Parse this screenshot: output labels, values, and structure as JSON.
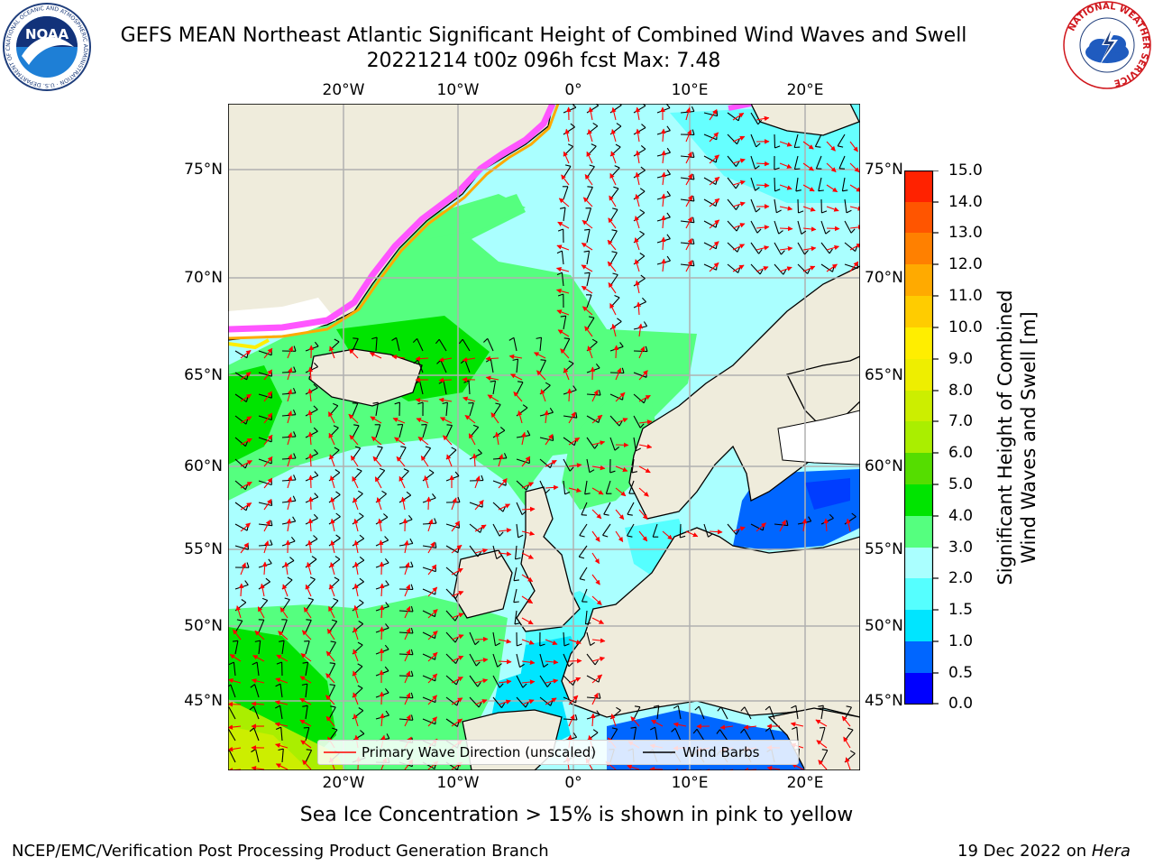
{
  "title": {
    "line1": "GEFS MEAN Northeast Atlantic Significant Height of Combined Wind Waves and Swell",
    "line2": "20221214 t00z 096h fcst   Max: 7.48"
  },
  "map": {
    "lon_ticks": [
      "20°W",
      "10°W",
      "0°",
      "10°E",
      "20°E"
    ],
    "lat_ticks_left": [
      "75°N",
      "70°N",
      "65°N",
      "60°N",
      "55°N",
      "50°N",
      "45°N"
    ],
    "lat_ticks_right": [
      "75°N",
      "70°N",
      "65°N",
      "60°N",
      "55°N",
      "50°N",
      "45°N"
    ],
    "colors": {
      "land": "#efecdc",
      "coast": "#000000",
      "grid": "#b0b0b0",
      "wave_arrow": "#ff0000",
      "wind_barb": "#000000"
    }
  },
  "legend": {
    "wave_direction": "Primary Wave Direction (unscaled)",
    "wind_barbs": "Wind Barbs"
  },
  "colorbar": {
    "title_line1": "Significant Height of Combined",
    "title_line2": "Wind Waves and Swell [m]",
    "tick_labels": [
      "15.0",
      "14.0",
      "13.0",
      "12.0",
      "11.0",
      "10.0",
      "9.0",
      "8.0",
      "7.0",
      "6.0",
      "5.0",
      "4.0",
      "3.0",
      "2.0",
      "1.5",
      "1.0",
      "0.5",
      "0.0"
    ],
    "bands_bottom_to_top": [
      "#0000ff",
      "#0066ff",
      "#00e5ff",
      "#55ffff",
      "#aaffff",
      "#55ff7f",
      "#00e400",
      "#55dd00",
      "#aaee00",
      "#ccee00",
      "#eeee00",
      "#ffee00",
      "#ffcc00",
      "#ffaa00",
      "#ff8000",
      "#ff5500",
      "#ff2200"
    ]
  },
  "sea_ice_note": "Sea Ice Concentration > 15% is shown in pink to yellow",
  "footer": {
    "left": "NCEP/EMC/Verification Post Processing Product Generation Branch",
    "right_prefix": "19 Dec 2022 on ",
    "right_host": "Hera"
  },
  "logos": {
    "noaa_text": "NOAA",
    "noaa_ring": "NATIONAL OCEANIC AND ATMOSPHERIC ADMINISTRATION · U.S. DEPARTMENT OF COMMERCE",
    "nws_ring": "NATIONAL WEATHER SERVICE"
  }
}
